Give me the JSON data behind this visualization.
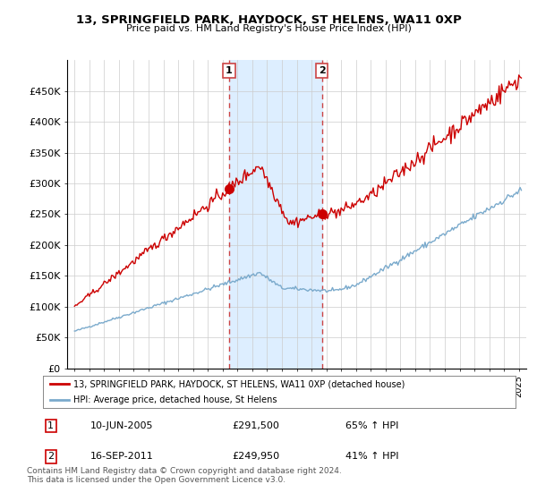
{
  "title": "13, SPRINGFIELD PARK, HAYDOCK, ST HELENS, WA11 0XP",
  "subtitle": "Price paid vs. HM Land Registry's House Price Index (HPI)",
  "ylim": [
    0,
    500000
  ],
  "yticks": [
    0,
    50000,
    100000,
    150000,
    200000,
    250000,
    300000,
    350000,
    400000,
    450000
  ],
  "ytick_labels": [
    "£0",
    "£50K",
    "£100K",
    "£150K",
    "£200K",
    "£250K",
    "£300K",
    "£350K",
    "£400K",
    "£450K"
  ],
  "sale1_date_num": 2005.44,
  "sale1_price": 291500,
  "sale2_date_num": 2011.71,
  "sale2_price": 249950,
  "sale1_date_str": "10-JUN-2005",
  "sale1_pct": "65% ↑ HPI",
  "sale2_date_str": "16-SEP-2011",
  "sale2_pct": "41% ↑ HPI",
  "legend_line1": "13, SPRINGFIELD PARK, HAYDOCK, ST HELENS, WA11 0XP (detached house)",
  "legend_line2": "HPI: Average price, detached house, St Helens",
  "footer": "Contains HM Land Registry data © Crown copyright and database right 2024.\nThis data is licensed under the Open Government Licence v3.0.",
  "plot_bg": "#ffffff",
  "red_color": "#cc0000",
  "blue_color": "#7aaacc",
  "shade_color": "#ddeeff",
  "xlim_left": 1994.5,
  "xlim_right": 2025.5
}
